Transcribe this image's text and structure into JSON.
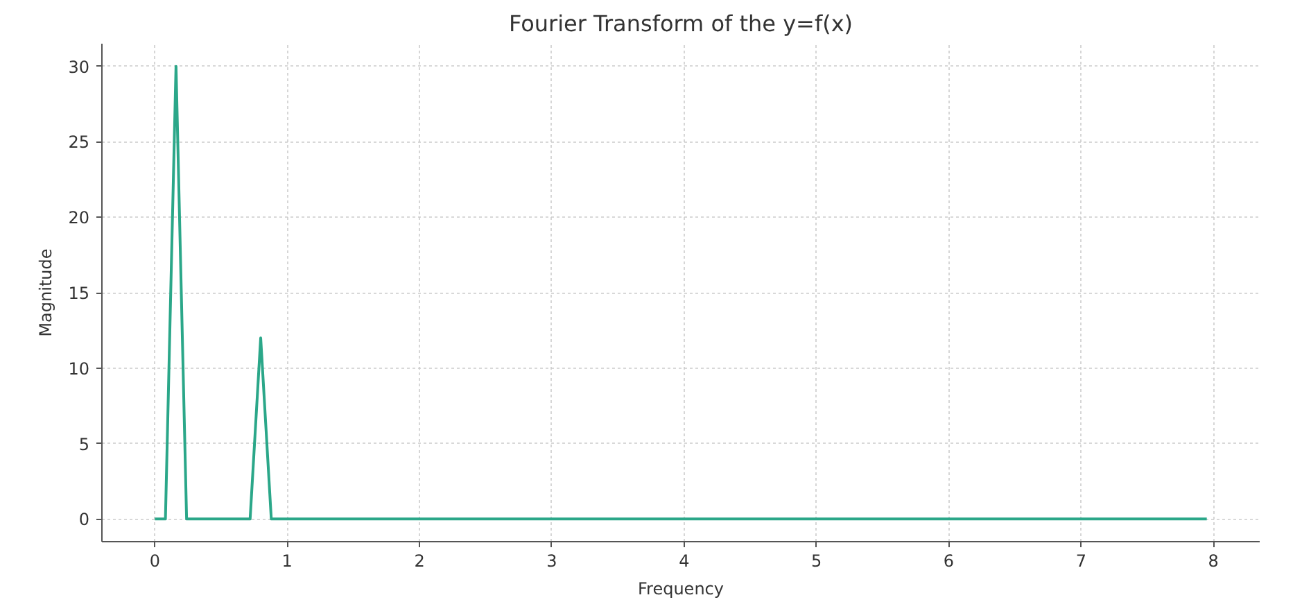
{
  "chart_data": {
    "type": "line",
    "title": "Fourier Transform of the y=f(x)",
    "xlabel": "Frequency",
    "ylabel": "Magnitude",
    "x": [
      0,
      0.08,
      0.16,
      0.24,
      0.72,
      0.8,
      0.88,
      7.95
    ],
    "series": [
      {
        "color": "#2ba789",
        "values": [
          0,
          0,
          30,
          0,
          0,
          12,
          0,
          0
        ]
      }
    ],
    "xlim": [
      -0.4,
      8.35
    ],
    "ylim": [
      -1.5,
      31.5
    ],
    "xticks": [
      0,
      1,
      2,
      3,
      4,
      5,
      6,
      7,
      8
    ],
    "yticks": [
      0,
      5,
      10,
      15,
      20,
      25,
      30
    ],
    "grid": true,
    "line_style": "solid"
  }
}
